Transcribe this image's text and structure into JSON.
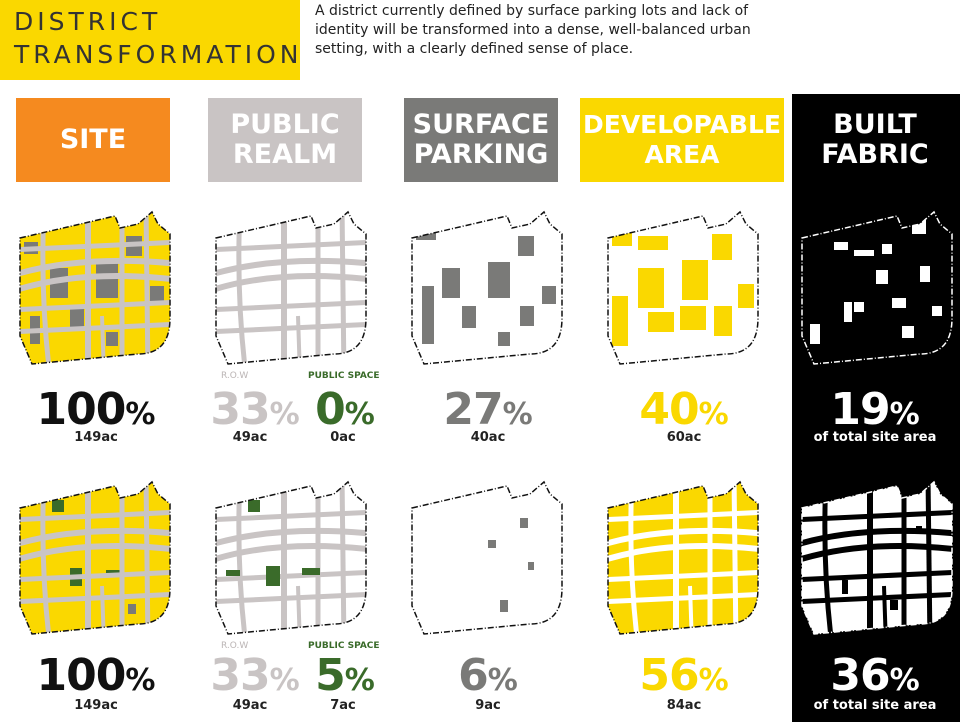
{
  "title": {
    "line1": "DISTRICT",
    "line2": "TRANSFORMATION"
  },
  "intro": [
    "A district currently defined by surface parking lots and lack of",
    "identity will be transformed into a dense, well-balanced urban",
    "setting, with a clearly defined sense of place."
  ],
  "colors": {
    "site": "#f58a1f",
    "public_realm": "#c9c4c4",
    "surface_parking": "#7a7a78",
    "developable": "#fad800",
    "built_fabric": "#000000",
    "public_space": "#3a6b2a"
  },
  "headers": {
    "site": [
      "SITE"
    ],
    "public_realm": [
      "PUBLIC",
      "REALM"
    ],
    "surface_parking": [
      "SURFACE",
      "PARKING"
    ],
    "developable": [
      "DEVELOPABLE",
      "AREA"
    ],
    "built_fabric": [
      "BUILT",
      "FABRIC"
    ]
  },
  "rows": [
    {
      "site": {
        "pct": "100",
        "sym": "%",
        "acres": "149ac"
      },
      "row": {
        "label": "R.O.W",
        "pct": "33",
        "sym": "%",
        "acres": "49ac"
      },
      "public_space": {
        "label": "PUBLIC SPACE",
        "pct": "0",
        "sym": "%",
        "acres": "0ac"
      },
      "surface_parking": {
        "pct": "27",
        "sym": "%",
        "acres": "40ac"
      },
      "developable": {
        "pct": "40",
        "sym": "%",
        "acres": "60ac"
      },
      "built_fabric": {
        "pct": "19",
        "sym": "%",
        "note": "of total site area"
      }
    },
    {
      "site": {
        "pct": "100",
        "sym": "%",
        "acres": "149ac"
      },
      "row": {
        "label": "R.O.W",
        "pct": "33",
        "sym": "%",
        "acres": "49ac"
      },
      "public_space": {
        "label": "PUBLIC SPACE",
        "pct": "5",
        "sym": "%",
        "acres": "7ac"
      },
      "surface_parking": {
        "pct": "6",
        "sym": "%",
        "acres": "9ac"
      },
      "developable": {
        "pct": "56",
        "sym": "%",
        "acres": "84ac"
      },
      "built_fabric": {
        "pct": "36",
        "sym": "%",
        "note": "of total site area"
      }
    }
  ]
}
